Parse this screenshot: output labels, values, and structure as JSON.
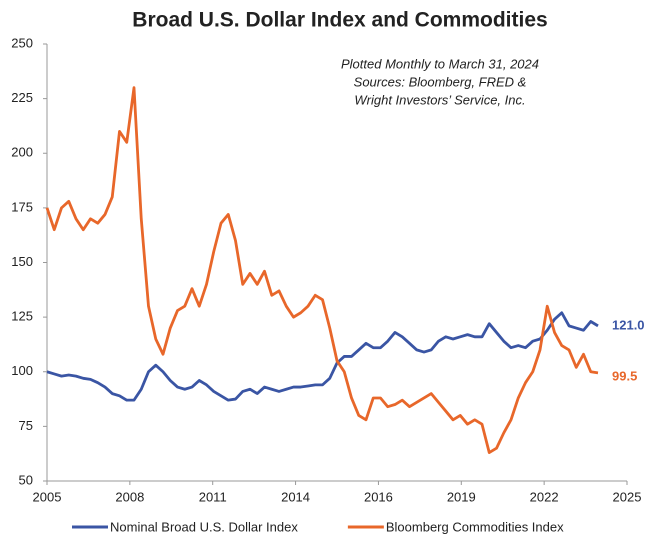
{
  "chart_data": {
    "type": "line",
    "title": "Broad U.S. Dollar Index and Commodities",
    "annotations": [
      "Plotted Monthly to March 31, 2024",
      "Sources: Bloomberg, FRED &",
      "Wright Investors’ Service, Inc."
    ],
    "x": [
      2005,
      2005.25,
      2005.5,
      2005.75,
      2006,
      2006.25,
      2006.5,
      2006.75,
      2007,
      2007.25,
      2007.5,
      2007.75,
      2008,
      2008.25,
      2008.5,
      2008.75,
      2009,
      2009.25,
      2009.5,
      2009.75,
      2010,
      2010.25,
      2010.5,
      2010.75,
      2011,
      2011.25,
      2011.5,
      2011.75,
      2012,
      2012.25,
      2012.5,
      2012.75,
      2013,
      2013.25,
      2013.5,
      2013.75,
      2014,
      2014.25,
      2014.5,
      2014.75,
      2015,
      2015.25,
      2015.5,
      2015.75,
      2016,
      2016.25,
      2016.5,
      2016.75,
      2017,
      2017.25,
      2017.5,
      2017.75,
      2018,
      2018.25,
      2018.5,
      2018.75,
      2019,
      2019.25,
      2019.5,
      2019.75,
      2020,
      2020.25,
      2020.5,
      2020.75,
      2021,
      2021.25,
      2021.5,
      2021.75,
      2022,
      2022.25,
      2022.5,
      2022.75,
      2023,
      2023.25,
      2023.5,
      2023.75,
      2024
    ],
    "series": [
      {
        "name": "Nominal Broad U.S. Dollar Index",
        "color": "#3a55a4",
        "values": [
          100,
          99,
          98,
          98.5,
          98,
          97,
          96.5,
          95,
          93,
          90,
          89,
          87,
          87,
          92,
          100,
          103,
          100,
          96,
          93,
          92,
          93,
          96,
          94,
          91,
          89,
          87,
          87.5,
          91,
          92,
          90,
          93,
          92,
          91,
          92,
          93,
          93,
          93.5,
          94,
          94,
          97,
          104,
          107,
          107,
          110,
          113,
          111,
          111,
          114,
          118,
          116,
          113,
          110,
          109,
          110,
          114,
          116,
          115,
          116,
          117,
          116,
          116,
          122,
          118,
          114,
          111,
          112,
          111,
          114,
          115,
          119,
          124,
          127,
          121,
          120,
          119,
          123,
          121
        ],
        "value_labels": [
          null,
          null,
          null,
          null,
          null,
          null,
          null,
          null,
          null,
          null,
          null,
          null,
          null,
          null,
          null,
          null,
          null,
          null,
          null,
          null,
          null,
          null,
          null,
          null,
          null,
          null,
          null,
          null,
          null,
          null,
          null,
          null,
          null,
          null,
          null,
          null,
          null,
          null,
          null,
          null,
          null,
          null,
          null,
          null,
          null,
          null,
          null,
          null,
          null,
          null,
          null,
          null,
          null,
          null,
          null,
          null,
          null,
          null,
          null,
          null,
          null,
          null,
          null,
          null,
          null,
          null,
          null,
          null,
          null,
          null,
          null,
          null,
          null,
          null,
          null,
          null,
          "121.0"
        ]
      },
      {
        "name": "Bloomberg Commodities Index",
        "color": "#e8672a",
        "values": [
          175,
          165,
          175,
          178,
          170,
          165,
          170,
          168,
          172,
          180,
          210,
          205,
          230,
          170,
          130,
          115,
          108,
          120,
          128,
          130,
          138,
          130,
          140,
          155,
          168,
          172,
          160,
          140,
          145,
          140,
          146,
          135,
          137,
          130,
          125,
          127,
          130,
          135,
          133,
          120,
          105,
          100,
          88,
          80,
          78,
          88,
          88,
          84,
          85,
          87,
          84,
          86,
          88,
          90,
          86,
          82,
          78,
          80,
          76,
          78,
          76,
          63,
          65,
          72,
          78,
          88,
          95,
          100,
          110,
          130,
          118,
          112,
          110,
          102,
          108,
          100,
          99.5
        ],
        "value_labels": [
          null,
          null,
          null,
          null,
          null,
          null,
          null,
          null,
          null,
          null,
          null,
          null,
          null,
          null,
          null,
          null,
          null,
          null,
          null,
          null,
          null,
          null,
          null,
          null,
          null,
          null,
          null,
          null,
          null,
          null,
          null,
          null,
          null,
          null,
          null,
          null,
          null,
          null,
          null,
          null,
          null,
          null,
          null,
          null,
          null,
          null,
          null,
          null,
          null,
          null,
          null,
          null,
          null,
          null,
          null,
          null,
          null,
          null,
          null,
          null,
          null,
          null,
          null,
          null,
          null,
          null,
          null,
          null,
          null,
          null,
          null,
          null,
          null,
          null,
          null,
          null,
          "99.5"
        ]
      }
    ],
    "xlim": [
      2005,
      2025
    ],
    "xticks": [
      2005,
      {
        "value": 2007.857,
        "label": "2008"
      },
      {
        "value": 2010.714,
        "label": "2011"
      },
      {
        "value": 2013.571,
        "label": "2014"
      },
      {
        "value": 2016.429,
        "label": "2016"
      },
      {
        "value": 2019.286,
        "label": "2019"
      },
      {
        "value": 2022.143,
        "label": "2022"
      },
      2025
    ],
    "ylim": [
      50,
      250
    ],
    "yticks": [
      50,
      75,
      100,
      125,
      150,
      175,
      200,
      225,
      250
    ],
    "grid": false,
    "legend": "bottom"
  }
}
